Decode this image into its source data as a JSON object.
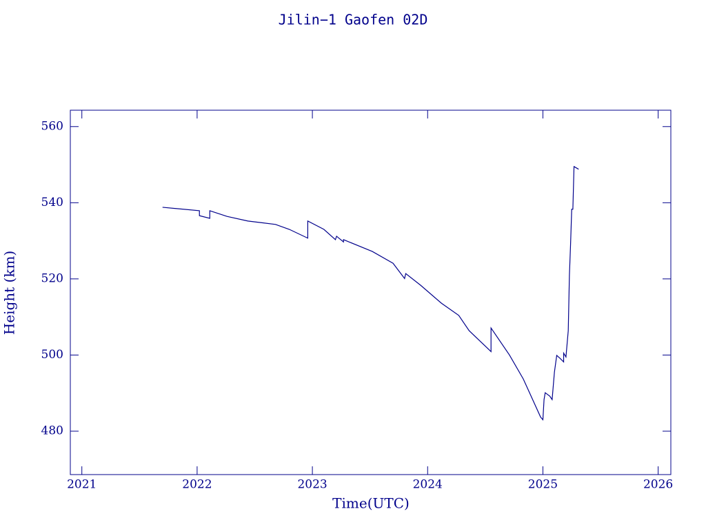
{
  "chart_data": {
    "type": "line",
    "title": "Jilin−1 Gaofen 02D",
    "x_label": "Time(UTC)",
    "y_label": "Height (km)",
    "xlim": [
      2020.9,
      2026.11
    ],
    "ylim": [
      468.6,
      564.3
    ],
    "xticks": [
      2021,
      2022,
      2023,
      2024,
      2025,
      2026
    ],
    "yticks": [
      480,
      500,
      520,
      540,
      560
    ],
    "color": "#00008b",
    "x": [
      2021.7,
      2022.02,
      2022.02,
      2022.11,
      2022.11,
      2022.26,
      2022.44,
      2022.68,
      2022.8,
      2022.96,
      2022.96,
      2023.1,
      2023.2,
      2023.21,
      2023.27,
      2023.27,
      2023.52,
      2023.7,
      2023.8,
      2023.81,
      2023.94,
      2024.12,
      2024.27,
      2024.36,
      2024.55,
      2024.55,
      2024.71,
      2024.83,
      2024.98,
      2025.0,
      2025.01,
      2025.02,
      2025.06,
      2025.08,
      2025.1,
      2025.12,
      2025.15,
      2025.18,
      2025.18,
      2025.2,
      2025.22,
      2025.23,
      2025.24,
      2025.25,
      2025.26,
      2025.27,
      2025.31
    ],
    "values": [
      538.8,
      537.9,
      536.6,
      535.9,
      537.9,
      536.4,
      535.2,
      534.3,
      533.0,
      530.7,
      535.2,
      533.0,
      530.3,
      531.2,
      529.7,
      530.3,
      527.2,
      524.1,
      520.1,
      521.4,
      518.3,
      513.6,
      510.4,
      506.4,
      500.9,
      507.1,
      500.0,
      493.7,
      483.7,
      483.0,
      488.3,
      490.1,
      489.2,
      488.3,
      495.5,
      499.9,
      499.1,
      498.2,
      500.5,
      499.5,
      506.4,
      520.9,
      529.0,
      538.3,
      538.3,
      549.5,
      548.8
    ]
  }
}
